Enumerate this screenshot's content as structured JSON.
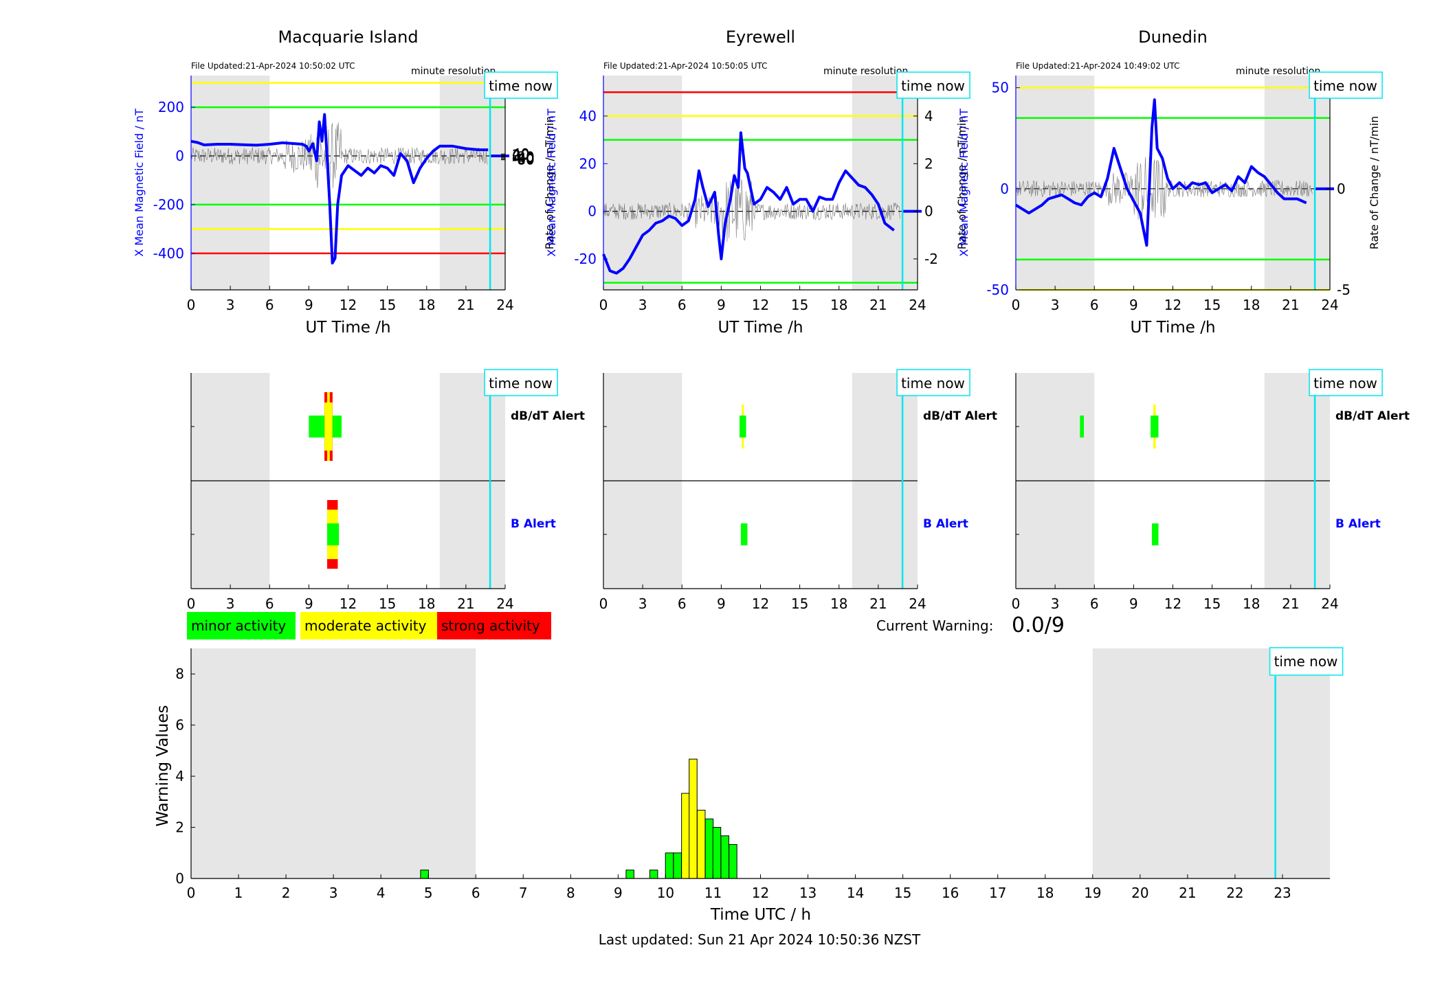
{
  "panels": [
    {
      "station": "Macquarie Island",
      "file_updated": "File Updated:21-Apr-2024 10:50:02 UTC",
      "resolution": "minute resolution",
      "time_now_label": "time now",
      "left_ylabel": "X Mean Magnetic Field / nT",
      "right_ylabel": "Rate of Change / nT/min",
      "xlabel": "UT Time /h",
      "ylim": [
        -550,
        330
      ],
      "left_ticks": [
        200,
        0,
        -200,
        -400
      ],
      "right_ticks": [
        40,
        20,
        0,
        -20,
        -40,
        -60,
        -80
      ],
      "right_scale": 5,
      "thresholds": [
        {
          "value": 300,
          "color": "yellow"
        },
        {
          "value": 200,
          "color": "green"
        },
        {
          "value": -200,
          "color": "green"
        },
        {
          "value": -300,
          "color": "yellow"
        },
        {
          "value": -400,
          "color": "red"
        }
      ],
      "x_series": [
        [
          0,
          60
        ],
        [
          0.5,
          55
        ],
        [
          1,
          45
        ],
        [
          2,
          48
        ],
        [
          3,
          48
        ],
        [
          4,
          46
        ],
        [
          5,
          44
        ],
        [
          6,
          48
        ],
        [
          7,
          54
        ],
        [
          8,
          50
        ],
        [
          8.5,
          48
        ],
        [
          8.8,
          40
        ],
        [
          9,
          20
        ],
        [
          9.3,
          50
        ],
        [
          9.6,
          -20
        ],
        [
          9.8,
          140
        ],
        [
          10,
          60
        ],
        [
          10.2,
          170
        ],
        [
          10.4,
          -10
        ],
        [
          10.6,
          -200
        ],
        [
          10.8,
          -440
        ],
        [
          11,
          -420
        ],
        [
          11.2,
          -200
        ],
        [
          11.5,
          -80
        ],
        [
          12,
          -40
        ],
        [
          12.5,
          -60
        ],
        [
          13,
          -80
        ],
        [
          13.5,
          -50
        ],
        [
          14,
          -70
        ],
        [
          14.5,
          -40
        ],
        [
          15,
          -50
        ],
        [
          15.5,
          -80
        ],
        [
          16,
          10
        ],
        [
          16.5,
          -20
        ],
        [
          17,
          -110
        ],
        [
          17.5,
          -50
        ],
        [
          18,
          -10
        ],
        [
          18.5,
          20
        ],
        [
          19,
          40
        ],
        [
          20,
          40
        ],
        [
          21,
          30
        ],
        [
          22,
          25
        ],
        [
          22.7,
          25
        ]
      ],
      "dbdt_alert": [
        [
          9,
          10,
          "green"
        ],
        [
          10,
          10.6,
          "green"
        ],
        [
          10.6,
          11,
          "green"
        ],
        [
          11,
          11.5,
          "green"
        ]
      ],
      "b_alert": [
        [
          10.4,
          11.3
        ]
      ]
    },
    {
      "station": "Eyrewell",
      "file_updated": "File Updated:21-Apr-2024 10:50:05 UTC",
      "resolution": "minute resolution",
      "time_now_label": "time now",
      "left_ylabel": "X Mean Magnetic Field / nT",
      "right_ylabel": "Rate of Change / nT/min",
      "xlabel": "UT Time /h",
      "ylim": [
        -33,
        57
      ],
      "left_ticks": [
        40,
        20,
        0,
        -20
      ],
      "right_ticks": [
        4,
        2,
        0,
        -2
      ],
      "right_scale": 0.1,
      "thresholds": [
        {
          "value": 50,
          "color": "red"
        },
        {
          "value": 40,
          "color": "yellow"
        },
        {
          "value": 30,
          "color": "green"
        },
        {
          "value": -30,
          "color": "green"
        }
      ],
      "x_series": [
        [
          0,
          -18
        ],
        [
          0.5,
          -25
        ],
        [
          1,
          -26
        ],
        [
          1.5,
          -24
        ],
        [
          2,
          -20
        ],
        [
          2.5,
          -15
        ],
        [
          3,
          -10
        ],
        [
          3.5,
          -8
        ],
        [
          4,
          -5
        ],
        [
          4.5,
          -4
        ],
        [
          5,
          -2
        ],
        [
          5.5,
          -3
        ],
        [
          6,
          -6
        ],
        [
          6.5,
          -4
        ],
        [
          7,
          5
        ],
        [
          7.3,
          17
        ],
        [
          7.6,
          10
        ],
        [
          8,
          2
        ],
        [
          8.5,
          8
        ],
        [
          8.8,
          -10
        ],
        [
          9,
          -20
        ],
        [
          9.3,
          -5
        ],
        [
          9.7,
          5
        ],
        [
          10,
          15
        ],
        [
          10.3,
          10
        ],
        [
          10.5,
          33
        ],
        [
          10.8,
          18
        ],
        [
          11,
          16
        ],
        [
          11.5,
          3
        ],
        [
          12,
          5
        ],
        [
          12.5,
          10
        ],
        [
          13,
          8
        ],
        [
          13.5,
          5
        ],
        [
          14,
          10
        ],
        [
          14.5,
          3
        ],
        [
          15,
          5
        ],
        [
          15.5,
          5
        ],
        [
          16,
          0
        ],
        [
          16.5,
          6
        ],
        [
          17,
          5
        ],
        [
          17.5,
          5
        ],
        [
          18,
          12
        ],
        [
          18.5,
          17
        ],
        [
          19,
          14
        ],
        [
          19.5,
          11
        ],
        [
          20,
          10
        ],
        [
          20.5,
          7
        ],
        [
          21,
          3
        ],
        [
          21.5,
          -5
        ],
        [
          22.2,
          -8
        ]
      ],
      "dbdt_alert": [
        [
          10.4,
          10.9,
          "green"
        ]
      ],
      "b_alert": [
        [
          10.5,
          11
        ]
      ]
    },
    {
      "station": "Dunedin",
      "file_updated": "File Updated:21-Apr-2024 10:49:02 UTC",
      "resolution": "minute resolution",
      "time_now_label": "time now",
      "left_ylabel": "X Mean Magnetic Field / nT",
      "right_ylabel": "Rate of Change / nT/min",
      "xlabel": "UT Time /h",
      "ylim": [
        -50,
        56
      ],
      "left_ticks": [
        50,
        0,
        -50
      ],
      "right_ticks": [
        5,
        0,
        -5
      ],
      "right_scale": 0.1,
      "thresholds": [
        {
          "value": 50,
          "color": "yellow"
        },
        {
          "value": 35,
          "color": "green"
        },
        {
          "value": -35,
          "color": "green"
        },
        {
          "value": -50,
          "color": "yellow"
        }
      ],
      "x_series": [
        [
          0,
          -8
        ],
        [
          0.5,
          -10
        ],
        [
          1,
          -12
        ],
        [
          1.5,
          -10
        ],
        [
          2,
          -8
        ],
        [
          2.5,
          -5
        ],
        [
          3,
          -4
        ],
        [
          3.5,
          -3
        ],
        [
          4,
          -5
        ],
        [
          4.5,
          -7
        ],
        [
          5,
          -8
        ],
        [
          5.5,
          -4
        ],
        [
          6,
          -2
        ],
        [
          6.5,
          -4
        ],
        [
          7,
          5
        ],
        [
          7.5,
          20
        ],
        [
          8,
          10
        ],
        [
          8.5,
          0
        ],
        [
          9,
          -6
        ],
        [
          9.5,
          -12
        ],
        [
          10,
          -28
        ],
        [
          10.2,
          0
        ],
        [
          10.4,
          30
        ],
        [
          10.6,
          44
        ],
        [
          10.8,
          20
        ],
        [
          11.2,
          15
        ],
        [
          11.6,
          5
        ],
        [
          12,
          0
        ],
        [
          12.5,
          3
        ],
        [
          13,
          0
        ],
        [
          13.5,
          3
        ],
        [
          14,
          2
        ],
        [
          14.5,
          3
        ],
        [
          15,
          -2
        ],
        [
          15.5,
          0
        ],
        [
          16,
          2
        ],
        [
          16.5,
          -1
        ],
        [
          17,
          6
        ],
        [
          17.5,
          3
        ],
        [
          18,
          11
        ],
        [
          18.5,
          8
        ],
        [
          19,
          6
        ],
        [
          19.5,
          2
        ],
        [
          20,
          -2
        ],
        [
          20.5,
          -5
        ],
        [
          21,
          -5
        ],
        [
          21.5,
          -5
        ],
        [
          22.2,
          -7
        ]
      ],
      "dbdt_alert": [
        [
          4.9,
          5.2,
          "green"
        ],
        [
          10.3,
          10.9,
          "green"
        ]
      ],
      "b_alert": [
        [
          10.4,
          10.9
        ]
      ]
    }
  ],
  "alert_labels": {
    "dbdt": "dB/dT Alert",
    "b": "B Alert"
  },
  "legend": {
    "minor": "minor activity",
    "moderate": "moderate activity",
    "strong": "strong activity"
  },
  "colors": {
    "minor": "#00ff00",
    "moderate": "#ffff00",
    "strong": "#ff0000",
    "field": "#0000ff",
    "time_now": "#00e5ee",
    "night": "#e6e6e6"
  },
  "current_warning": {
    "label": "Current Warning:",
    "value": "0.0/9"
  },
  "night_hours": [
    [
      0,
      6
    ],
    [
      19,
      24
    ]
  ],
  "time_now_hour": 22.85,
  "chart_data": {
    "type": "bar",
    "title": "",
    "xlabel": "Time UTC / h",
    "ylabel": "Warning Values",
    "xlim": [
      0,
      24
    ],
    "ylim": [
      0,
      9
    ],
    "x_ticks": [
      "0",
      "1",
      "2",
      "3",
      "4",
      "5",
      "6",
      "7",
      "8",
      "9",
      "10",
      "11",
      "12",
      "13",
      "14",
      "15",
      "16",
      "17",
      "18",
      "19",
      "20",
      "21",
      "22",
      "23"
    ],
    "y_ticks": [
      "0",
      "2",
      "4",
      "6",
      "8"
    ],
    "bars": [
      {
        "x": 4.92,
        "value": 0.33,
        "level": "minor"
      },
      {
        "x": 9.25,
        "value": 0.33,
        "level": "minor"
      },
      {
        "x": 9.75,
        "value": 0.33,
        "level": "minor"
      },
      {
        "x": 10.08,
        "value": 1.0,
        "level": "minor"
      },
      {
        "x": 10.25,
        "value": 1.0,
        "level": "minor"
      },
      {
        "x": 10.42,
        "value": 3.33,
        "level": "moderate"
      },
      {
        "x": 10.58,
        "value": 4.67,
        "level": "moderate"
      },
      {
        "x": 10.75,
        "value": 2.67,
        "level": "moderate"
      },
      {
        "x": 10.92,
        "value": 2.33,
        "level": "minor"
      },
      {
        "x": 11.08,
        "value": 2.0,
        "level": "minor"
      },
      {
        "x": 11.25,
        "value": 1.67,
        "level": "minor"
      },
      {
        "x": 11.42,
        "value": 1.33,
        "level": "minor"
      }
    ]
  },
  "last_updated": "Last updated: Sun 21 Apr 2024 10:50:36 NZST"
}
